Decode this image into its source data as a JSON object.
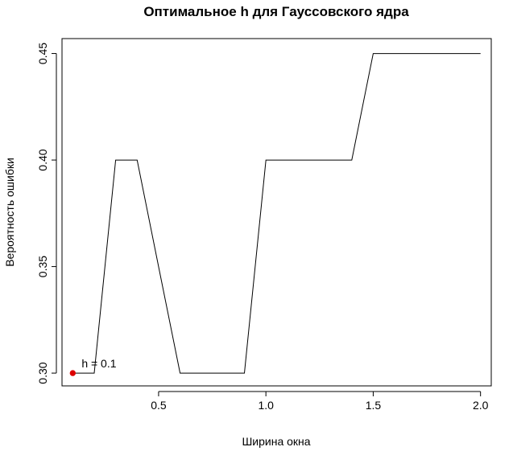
{
  "chart_data": {
    "type": "line",
    "title": "Оптимальное h  для Гауссовского ядра",
    "xlabel": "Ширина окна",
    "ylabel": "Вероятность ошибки",
    "xlim": [
      0.05,
      2.05
    ],
    "ylim": [
      0.294,
      0.457
    ],
    "xticks": [
      0.5,
      1.0,
      1.5,
      2.0
    ],
    "xtick_labels": [
      "0.5",
      "1.0",
      "1.5",
      "2.0"
    ],
    "yticks": [
      0.3,
      0.35,
      0.4,
      0.45
    ],
    "ytick_labels": [
      "0.30",
      "0.35",
      "0.40",
      "0.45"
    ],
    "grid": false,
    "series": [
      {
        "color": "#000000",
        "x": [
          0.1,
          0.2,
          0.3,
          0.4,
          0.5,
          0.6,
          0.7,
          0.8,
          0.9,
          1.0,
          1.1,
          1.2,
          1.3,
          1.4,
          1.5,
          1.6,
          1.7,
          1.8,
          1.9,
          2.0
        ],
        "y": [
          0.3,
          0.3,
          0.4,
          0.4,
          0.35,
          0.3,
          0.3,
          0.3,
          0.3,
          0.4,
          0.4,
          0.4,
          0.4,
          0.4,
          0.45,
          0.45,
          0.45,
          0.45,
          0.45,
          0.45
        ]
      }
    ],
    "highlight": {
      "x": 0.1,
      "y": 0.3,
      "color": "#dd0000",
      "label": "h = 0.1"
    }
  }
}
